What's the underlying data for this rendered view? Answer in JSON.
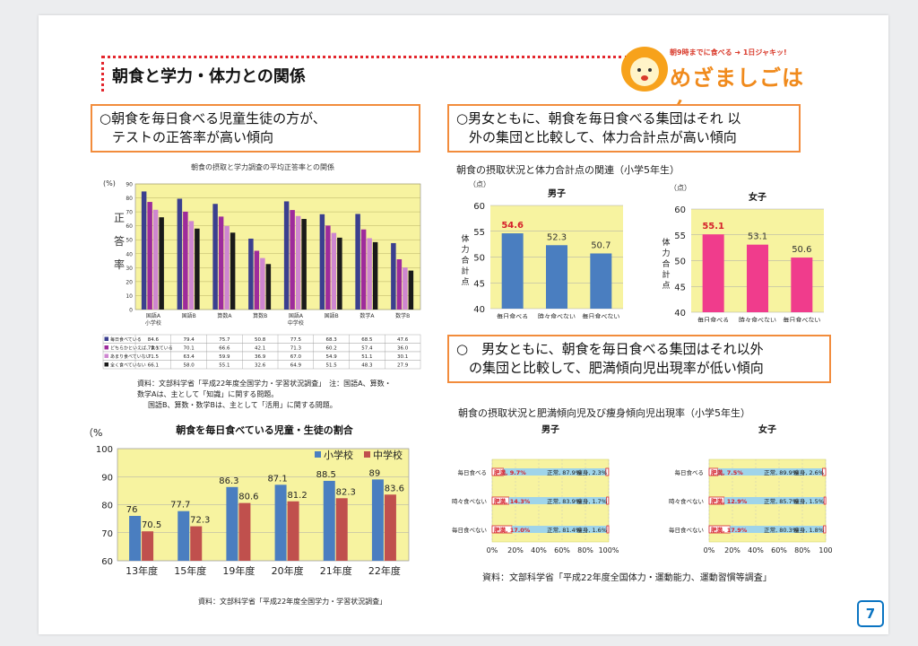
{
  "slide": {
    "title": "朝食と学力・体力との関係",
    "page_number": "7",
    "logo": {
      "tagline": "朝9時までに食べる ➜ 1日ジャキッ!",
      "name": "めざましごはん"
    }
  },
  "box1": {
    "line1": "○朝食を毎日食べる児童生徒の方が、",
    "line2": "テストの正答率が高い傾向"
  },
  "box2": {
    "line1": "○男女ともに、朝食を毎日食べる集団はそれ 以",
    "line2": "外の集団と比較して、体力合計点が高い傾向"
  },
  "box3": {
    "line1": "○　男女ともに、朝食を毎日食べる集団はそれ以外",
    "line2": "の集団と比較して、肥満傾向児出現率が低い傾向"
  },
  "source1": {
    "line1": "資料：文部科学省「平成22年度全国学力・学習状況調査」　注：国語A、算数・",
    "line2": "数学Aは、主として「知識」に関する問題。",
    "line3": "国語B、算数・数学Bは、主として「活用」に関する問題。"
  },
  "source2": "資料：文部科学省「平成22年度全国学力・学習状況調査」",
  "source3": "資料：文部科学省「平成22年度全国体力・運動能力、運動習慣等調査」",
  "fitness_caption": "朝食の摂取状況と体力合計点の関連（小学5年生）",
  "obesity_caption": "朝食の摂取状況と肥満傾向児及び痩身傾向児出現率（小学5年生）",
  "chart_data": [
    {
      "type": "bar",
      "title": "朝食の摂取と学力調査の平均正答率との関係",
      "ylabel": "正答率",
      "yunit": "(%)",
      "ylim": [
        0,
        90
      ],
      "yticks": [
        0,
        10,
        20,
        30,
        40,
        50,
        60,
        70,
        80,
        90
      ],
      "colors": [
        "#3b3f8f",
        "#9e2b9c",
        "#ce86d0",
        "#1a1a1a"
      ],
      "categories": [
        "国語A\n小学校",
        "国語B",
        "算数A",
        "算数B",
        "国語A\n中学校",
        "国語B",
        "数学A",
        "数学B"
      ],
      "series": [
        {
          "name": "毎日食べている",
          "values": [
            84.6,
            79.4,
            75.7,
            50.8,
            77.5,
            68.3,
            68.5,
            47.6
          ]
        },
        {
          "name": "どちらかといえば、食べている",
          "values": [
            77.1,
            70.1,
            66.6,
            42.1,
            71.3,
            60.2,
            57.4,
            36.0
          ]
        },
        {
          "name": "あまり食べていない",
          "values": [
            71.5,
            63.4,
            59.9,
            36.9,
            67.0,
            54.9,
            51.1,
            30.1
          ]
        },
        {
          "name": "全く食べていない",
          "values": [
            66.1,
            58.0,
            55.1,
            32.6,
            64.9,
            51.5,
            48.3,
            27.9
          ]
        }
      ]
    },
    {
      "type": "bar",
      "title": "朝食を毎日食べている児童・生徒の割合",
      "yunit": "（%",
      "ylim": [
        60,
        100
      ],
      "yticks": [
        60,
        70,
        80,
        90,
        100
      ],
      "categories": [
        "13年度",
        "15年度",
        "19年度",
        "20年度",
        "21年度",
        "22年度"
      ],
      "series": [
        {
          "name": "小学校",
          "color": "#4a7ec0",
          "values": [
            76,
            77.7,
            86.3,
            87.1,
            88.5,
            89
          ]
        },
        {
          "name": "中学校",
          "color": "#c0504d",
          "values": [
            70.5,
            72.3,
            80.6,
            81.2,
            82.3,
            83.6
          ]
        }
      ]
    },
    {
      "type": "bar",
      "title": "男子",
      "yunit": "（点）",
      "ylabel": "体力合計点",
      "ylim": [
        40,
        60
      ],
      "yticks": [
        40,
        45,
        50,
        55,
        60
      ],
      "color": "#4a7ec0",
      "categories": [
        "毎日食べる",
        "時々食べない",
        "毎日食べない"
      ],
      "values": [
        54.6,
        52.3,
        50.7
      ]
    },
    {
      "type": "bar",
      "title": "女子",
      "yunit": "（点）",
      "ylabel": "体力合計点",
      "ylim": [
        40,
        60
      ],
      "yticks": [
        40,
        45,
        50,
        55,
        60
      ],
      "color": "#f03c8c",
      "categories": [
        "毎日食べる",
        "時々食べない",
        "毎日食べない"
      ],
      "values": [
        55.1,
        53.1,
        50.6
      ]
    },
    {
      "type": "bar",
      "title": "男子",
      "stacked": true,
      "orientation": "horizontal",
      "xticks": [
        "0%",
        "20%",
        "40%",
        "60%",
        "80%",
        "100%"
      ],
      "categories": [
        "毎日食べる",
        "時々食べない",
        "毎日食べない"
      ],
      "series": [
        {
          "name": "肥満",
          "values": [
            9.7,
            14.3,
            17.0
          ],
          "labels": [
            "肥満, 9.7%",
            "肥満, 14.3%",
            "肥満, 17.0%"
          ]
        },
        {
          "name": "正常",
          "values": [
            87.9,
            83.9,
            81.4
          ],
          "labels": [
            "正常, 87.9%",
            "正常, 83.9%",
            "正常, 81.4%"
          ]
        },
        {
          "name": "痩身",
          "values": [
            2.3,
            1.7,
            1.6
          ],
          "labels": [
            "痩身, 2.3%",
            "痩身, 1.7%",
            "痩身, 1.6%"
          ]
        }
      ]
    },
    {
      "type": "bar",
      "title": "女子",
      "stacked": true,
      "orientation": "horizontal",
      "xticks": [
        "0%",
        "20%",
        "40%",
        "60%",
        "80%",
        "100"
      ],
      "categories": [
        "毎日食べる",
        "時々食べない",
        "毎日食べない"
      ],
      "series": [
        {
          "name": "肥満",
          "values": [
            7.5,
            12.9,
            17.9
          ],
          "labels": [
            "肥満, 7.5%",
            "肥満, 12.9%",
            "肥満, 17.9%"
          ]
        },
        {
          "name": "正常",
          "values": [
            89.9,
            85.7,
            80.3
          ],
          "labels": [
            "正常, 89.9%",
            "正常, 85.7%",
            "正常, 80.3%"
          ]
        },
        {
          "name": "痩身",
          "values": [
            2.6,
            1.5,
            1.8
          ],
          "labels": [
            "痩身, 2.6%",
            "痩身, 1.5%",
            "痩身, 1.8%"
          ]
        }
      ]
    }
  ]
}
